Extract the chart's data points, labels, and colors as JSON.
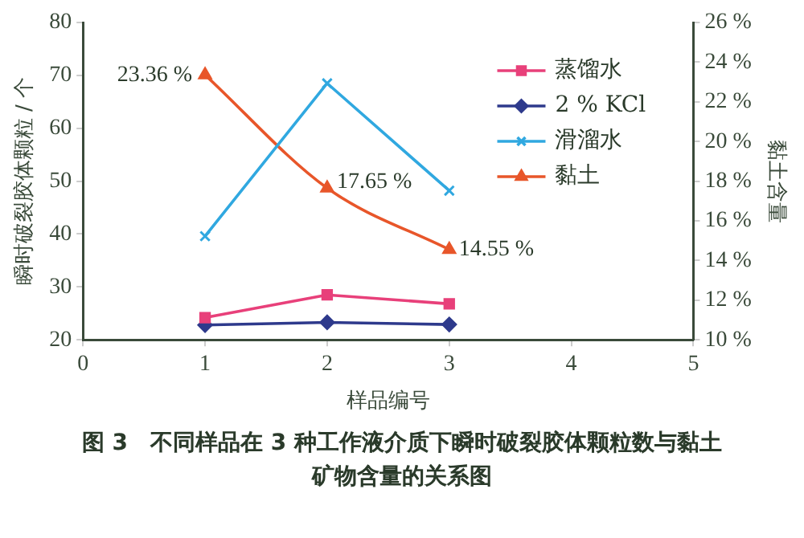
{
  "chart_data": {
    "type": "line",
    "title": "图 3　不同样品在 3 种工作液介质下瞬时破裂胶体颗粒数与黏土矿物含量的关系图",
    "xlabel": "样品编号",
    "ylabel": "瞬时破裂胶体颗粒 / 个",
    "y2label": "黏土含量",
    "x": [
      1,
      2,
      3
    ],
    "xlim": [
      0,
      5
    ],
    "xticks": [
      0,
      1,
      2,
      3,
      4,
      5
    ],
    "ylim": [
      20,
      80
    ],
    "yticks": [
      20,
      30,
      40,
      50,
      60,
      70,
      80
    ],
    "y2lim": [
      10,
      26
    ],
    "y2ticks": [
      {
        "value": 10,
        "label": "10 %"
      },
      {
        "value": 12,
        "label": "12 %"
      },
      {
        "value": 14,
        "label": "14 %"
      },
      {
        "value": 16,
        "label": "16 %"
      },
      {
        "value": 18,
        "label": "18 %"
      },
      {
        "value": 20,
        "label": "20 %"
      },
      {
        "value": 22,
        "label": "22 %"
      },
      {
        "value": 24,
        "label": "24 %"
      },
      {
        "value": 26,
        "label": "26 %"
      }
    ],
    "grid": false,
    "legend": "top right",
    "line_style": "solid",
    "series": [
      {
        "name": "蒸馏水",
        "color": "#e8407a",
        "marker": "square",
        "values": [
          24.2,
          28.5,
          26.8
        ]
      },
      {
        "name": "2 % KCl",
        "color": "#2e3a8c",
        "marker": "diamond",
        "values": [
          22.8,
          23.3,
          22.9
        ]
      },
      {
        "name": "滑溜水",
        "color": "#30a8e0",
        "marker": "cross",
        "values": [
          39.6,
          68.5,
          48.2
        ]
      },
      {
        "name": "黏土",
        "color": "#e8562a",
        "marker": "triangle",
        "axis": "y2",
        "values": [
          23.36,
          17.65,
          14.55
        ],
        "value_labels": [
          "23.36 %",
          "17.65 %",
          "14.55 %"
        ]
      }
    ]
  }
}
